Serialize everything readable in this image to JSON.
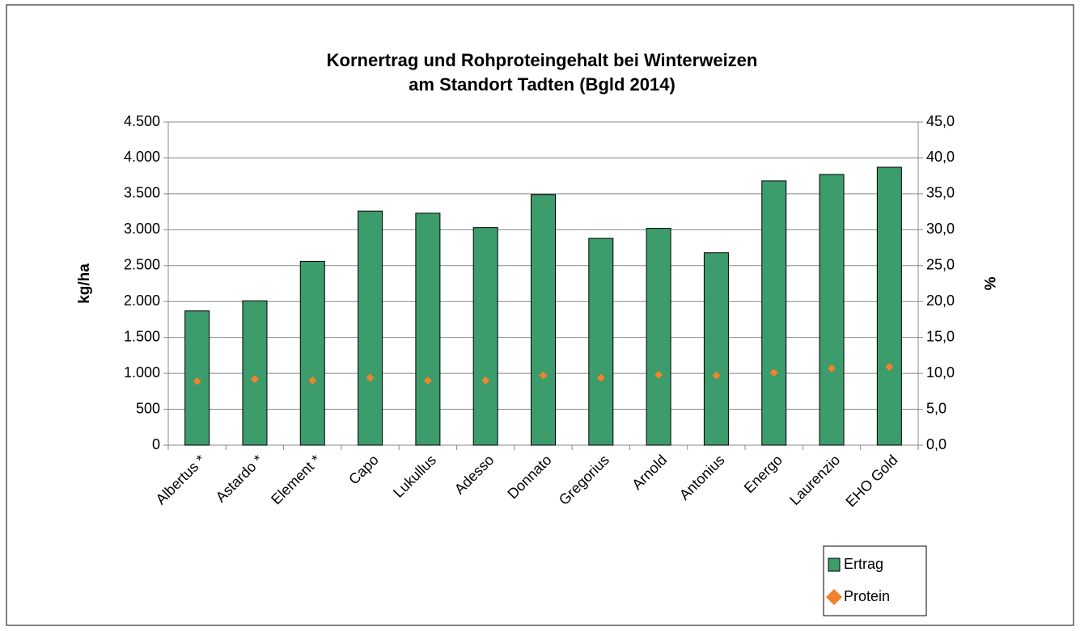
{
  "chart_data": {
    "type": "bar",
    "title": [
      "Kornertrag und Rohproteingehalt bei Winterweizen",
      "am Standort Tadten (Bgld 2014)"
    ],
    "ylabel": "kg/ha",
    "y2label": "%",
    "categories": [
      "Albertus *",
      "Astardo *",
      "Element *",
      "Capo",
      "Lukullus",
      "Adesso",
      "Donnato",
      "Gregorius",
      "Arnold",
      "Antonius",
      "Energo",
      "Laurenzio",
      "EHO Gold"
    ],
    "series": [
      {
        "name": "Ertrag",
        "type": "bar",
        "color": "#3c9c6c",
        "values": [
          1870,
          2010,
          2560,
          3260,
          3230,
          3030,
          3490,
          2880,
          3020,
          2680,
          3680,
          3770,
          3870
        ]
      },
      {
        "name": "Protein",
        "type": "scatter",
        "axis": "y2",
        "color": "#f0832c",
        "values": [
          8.9,
          9.2,
          9.0,
          9.4,
          9.0,
          9.0,
          9.7,
          9.4,
          9.8,
          9.7,
          10.1,
          10.7,
          10.9
        ]
      }
    ],
    "ylim": [
      0,
      4500
    ],
    "yticks": [
      0,
      {
        "value": 500,
        "label": "500"
      },
      {
        "value": 1000,
        "label": "1.000"
      },
      {
        "value": 1500,
        "label": "1.500"
      },
      {
        "value": 2000,
        "label": "2.000"
      },
      {
        "value": 2500,
        "label": "2.500"
      },
      {
        "value": 3000,
        "label": "3.000"
      },
      {
        "value": 3500,
        "label": "3.500"
      },
      {
        "value": 4000,
        "label": "4.000"
      },
      {
        "value": 4500,
        "label": "4.500"
      }
    ],
    "y2lim": [
      0,
      45
    ],
    "y2ticks": [
      {
        "value": 0,
        "label": "0,0"
      },
      {
        "value": 5,
        "label": "5,0"
      },
      {
        "value": 10,
        "label": "10,0"
      },
      {
        "value": 15,
        "label": "15,0"
      },
      {
        "value": 20,
        "label": "20,0"
      },
      {
        "value": 25,
        "label": "25,0"
      },
      {
        "value": 30,
        "label": "30,0"
      },
      {
        "value": 35,
        "label": "35,0"
      },
      {
        "value": 40,
        "label": "40,0"
      },
      {
        "value": 45,
        "label": "45,0"
      }
    ],
    "grid": true,
    "legend": "bottom-right"
  }
}
